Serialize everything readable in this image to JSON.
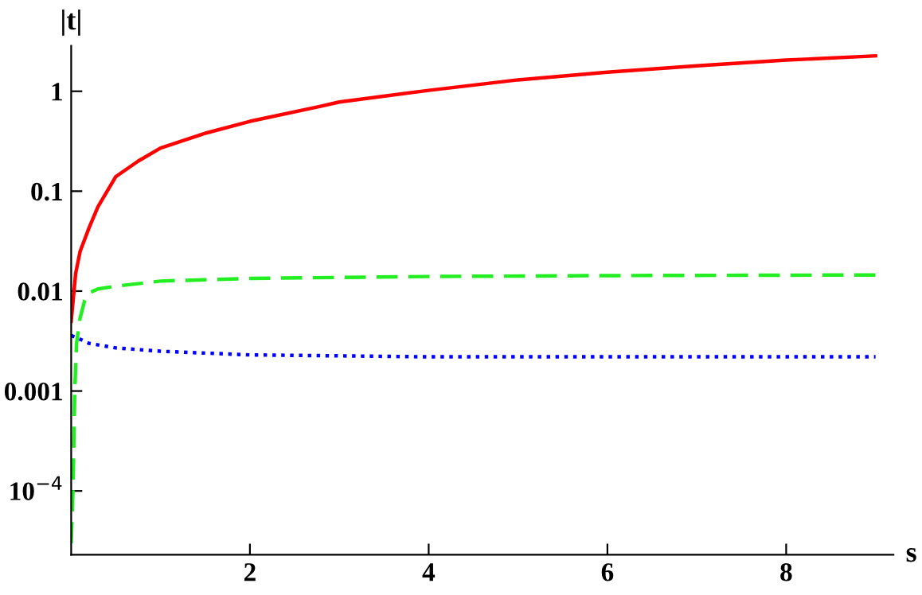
{
  "chart_data": {
    "type": "line",
    "xlabel": "s",
    "ylabel": "|t|",
    "log": "y",
    "grid": false,
    "legend": false,
    "xlim": [
      0,
      9.2
    ],
    "xticks": [
      2,
      4,
      6,
      8
    ],
    "ylim": [
      2.3e-05,
      2.85
    ],
    "yticks": [
      {
        "value": 0.0001,
        "label": "10$^{−4}$"
      },
      0.001,
      0.01,
      0.1,
      1
    ],
    "series": [
      {
        "color": "#ff0000",
        "line_style": "solid",
        "x": [
          0,
          0.05,
          0.1,
          0.2,
          0.3,
          0.5,
          0.75,
          1,
          1.5,
          2,
          2.77,
          3,
          4,
          5,
          6,
          7,
          8,
          9
        ],
        "values": [
          0.005,
          0.015,
          0.025,
          0.043,
          0.07,
          0.14,
          0.2,
          0.27,
          0.38,
          0.5,
          0.7,
          0.78,
          1.02,
          1.3,
          1.55,
          1.8,
          2.05,
          2.26
        ]
      },
      {
        "color": "#22ee22",
        "line_style": "dashed",
        "x": [
          0,
          0.02,
          0.04,
          0.06,
          0.1,
          0.15,
          0.2,
          0.3,
          0.5,
          1,
          2,
          4,
          6,
          9
        ],
        "values": [
          3e-05,
          0.0001,
          0.001,
          0.003,
          0.0054,
          0.008,
          0.0096,
          0.0105,
          0.0112,
          0.0126,
          0.0134,
          0.014,
          0.0143,
          0.0145
        ]
      },
      {
        "color": "#0000ff",
        "line_style": "dotted",
        "x": [
          0,
          0.1,
          0.2,
          0.5,
          1,
          2,
          4,
          9
        ],
        "values": [
          0.0036,
          0.0033,
          0.003,
          0.0027,
          0.0025,
          0.0023,
          0.0022,
          0.0022
        ]
      }
    ]
  }
}
